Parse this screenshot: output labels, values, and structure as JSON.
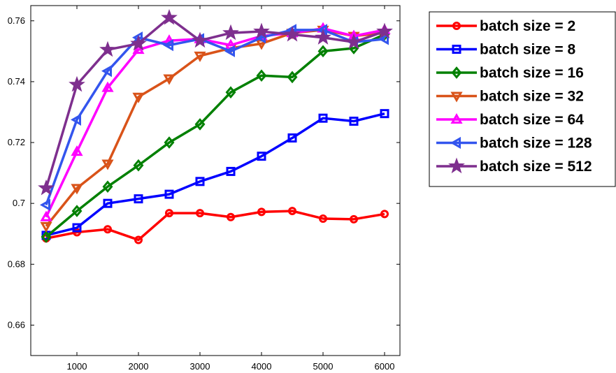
{
  "chart_data": {
    "type": "line",
    "title": "",
    "xlabel": "",
    "ylabel": "",
    "xlim": [
      250,
      6250
    ],
    "ylim": [
      0.65,
      0.765
    ],
    "x_ticks": [
      {
        "value": 1000,
        "label": "1000"
      },
      {
        "value": 2000,
        "label": "2000"
      },
      {
        "value": 3000,
        "label": "3000"
      },
      {
        "value": 4000,
        "label": "4000"
      },
      {
        "value": 5000,
        "label": "5000"
      },
      {
        "value": 6000,
        "label": "6000"
      }
    ],
    "y_ticks": [
      {
        "value": 0.66,
        "label": "0.66"
      },
      {
        "value": 0.68,
        "label": "0.68"
      },
      {
        "value": 0.7,
        "label": "0.7"
      },
      {
        "value": 0.72,
        "label": "0.72"
      },
      {
        "value": 0.74,
        "label": "0.74"
      },
      {
        "value": 0.76,
        "label": "0.76"
      }
    ],
    "grid": false,
    "legend_position": "outside-right-top",
    "x": [
      500,
      1000,
      1500,
      2000,
      2500,
      3000,
      3500,
      4000,
      4500,
      5000,
      5500,
      6000
    ],
    "series": [
      {
        "name": "batch size = 2",
        "color": "#ff0000",
        "marker": "circle",
        "values": [
          0.6885,
          0.6905,
          0.6915,
          0.688,
          0.6968,
          0.6968,
          0.6955,
          0.6972,
          0.6975,
          0.695,
          0.6948,
          0.6965
        ]
      },
      {
        "name": "batch size = 8",
        "color": "#0000ff",
        "marker": "square",
        "values": [
          0.6895,
          0.692,
          0.7,
          0.7015,
          0.703,
          0.7072,
          0.7105,
          0.7155,
          0.7215,
          0.728,
          0.727,
          0.7295
        ]
      },
      {
        "name": "batch size = 16",
        "color": "#008000",
        "marker": "diamond",
        "values": [
          0.689,
          0.6975,
          0.7055,
          0.7125,
          0.72,
          0.726,
          0.7365,
          0.742,
          0.7415,
          0.75,
          0.751,
          0.7555
        ]
      },
      {
        "name": "batch size = 32",
        "color": "#d95319",
        "marker": "triangle-down",
        "values": [
          0.6925,
          0.705,
          0.713,
          0.735,
          0.741,
          0.7485,
          0.751,
          0.7525,
          0.756,
          0.757,
          0.755,
          0.756
        ]
      },
      {
        "name": "batch size = 64",
        "color": "#ff00ff",
        "marker": "triangle-up",
        "values": [
          0.6955,
          0.717,
          0.738,
          0.7505,
          0.7535,
          0.754,
          0.752,
          0.755,
          0.756,
          0.7575,
          0.755,
          0.757
        ]
      },
      {
        "name": "batch size = 128",
        "color": "#3355ee",
        "marker": "triangle-left",
        "values": [
          0.6995,
          0.7275,
          0.7435,
          0.7545,
          0.752,
          0.754,
          0.75,
          0.7545,
          0.757,
          0.757,
          0.753,
          0.754
        ]
      },
      {
        "name": "batch size = 512",
        "color": "#7e2f8e",
        "marker": "star",
        "values": [
          0.705,
          0.739,
          0.7505,
          0.7525,
          0.761,
          0.7535,
          0.756,
          0.7565,
          0.7555,
          0.7545,
          0.753,
          0.7565
        ]
      }
    ]
  }
}
